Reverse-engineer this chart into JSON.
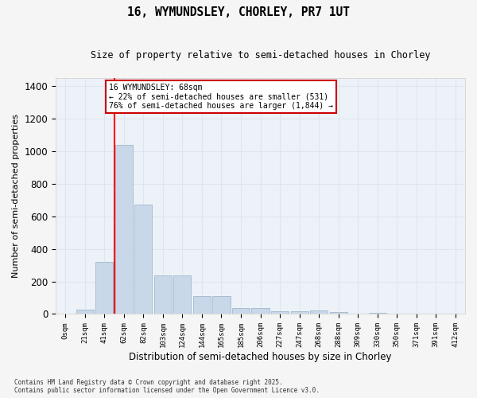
{
  "title1": "16, WYMUNDSLEY, CHORLEY, PR7 1UT",
  "title2": "Size of property relative to semi-detached houses in Chorley",
  "xlabel": "Distribution of semi-detached houses by size in Chorley",
  "ylabel": "Number of semi-detached properties",
  "bar_labels": [
    "0sqm",
    "21sqm",
    "41sqm",
    "62sqm",
    "82sqm",
    "103sqm",
    "124sqm",
    "144sqm",
    "165sqm",
    "185sqm",
    "206sqm",
    "227sqm",
    "247sqm",
    "268sqm",
    "288sqm",
    "309sqm",
    "330sqm",
    "350sqm",
    "371sqm",
    "391sqm",
    "412sqm"
  ],
  "bar_values": [
    0,
    25,
    320,
    1035,
    670,
    235,
    235,
    110,
    110,
    35,
    35,
    15,
    15,
    20,
    10,
    0,
    5,
    0,
    0,
    0,
    0
  ],
  "bar_color": "#c8d8e8",
  "bar_edgecolor": "#a0b8cc",
  "red_line_bin": 3,
  "annotation_title": "16 WYMUNDSLEY: 68sqm",
  "annotation_line1": "← 22% of semi-detached houses are smaller (531)",
  "annotation_line2": "76% of semi-detached houses are larger (1,844) →",
  "annotation_box_facecolor": "#ffffff",
  "annotation_box_edgecolor": "#cc0000",
  "ylim": [
    0,
    1450
  ],
  "yticks": [
    0,
    200,
    400,
    600,
    800,
    1000,
    1200,
    1400
  ],
  "grid_color": "#dce6f0",
  "bg_color": "#edf2f8",
  "fig_facecolor": "#f5f5f5",
  "footer1": "Contains HM Land Registry data © Crown copyright and database right 2025.",
  "footer2": "Contains public sector information licensed under the Open Government Licence v3.0."
}
